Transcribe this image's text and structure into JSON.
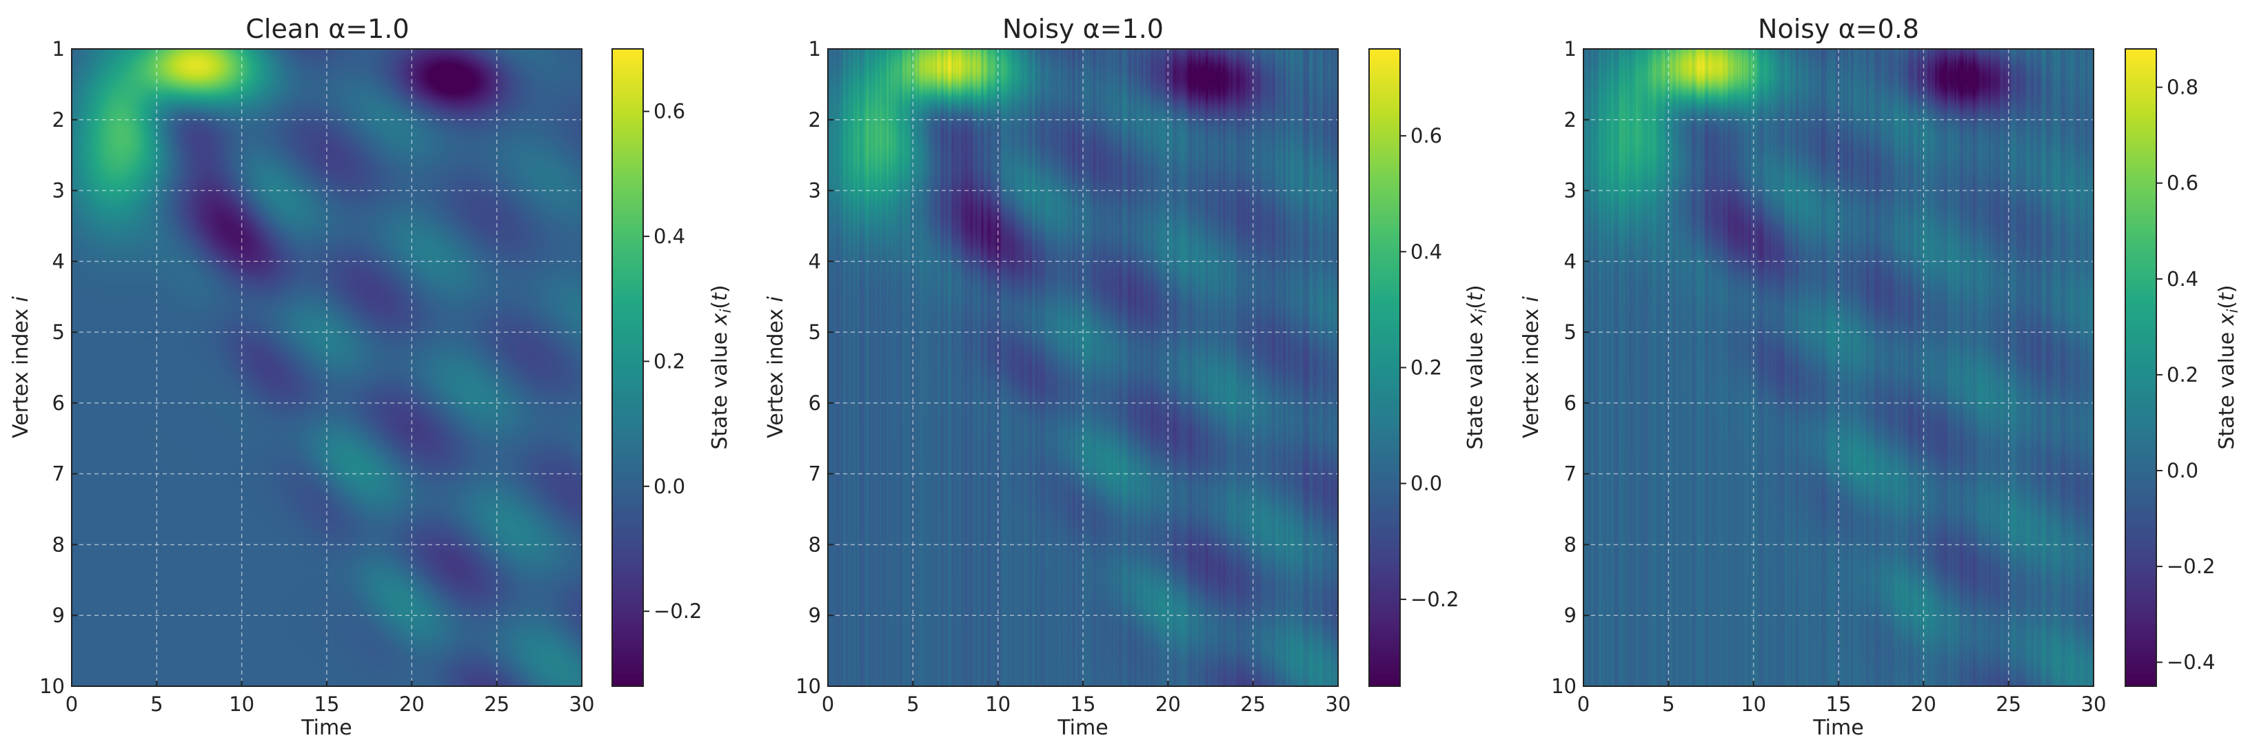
{
  "chart_data": [
    {
      "type": "heatmap",
      "title": "Clean α=1.0",
      "xlabel": "Time",
      "ylabel": "Vertex index i",
      "colorbar_label": "State value x_i(t)",
      "xlim": [
        0,
        30
      ],
      "ylim": [
        1,
        10
      ],
      "y_inverted": true,
      "x_ticks": [
        "0",
        "5",
        "10",
        "15",
        "20",
        "25",
        "30"
      ],
      "y_ticks": [
        "1",
        "2",
        "3",
        "4",
        "5",
        "6",
        "7",
        "8",
        "9",
        "10"
      ],
      "colorbar_range": [
        -0.32,
        0.7
      ],
      "colorbar_ticks": [
        "−0.2",
        "0.0",
        "0.2",
        "0.4",
        "0.6"
      ],
      "colorbar_tick_values": [
        -0.2,
        0.0,
        0.2,
        0.4,
        0.6
      ],
      "colormap": "viridis",
      "grid": true,
      "noise": 0,
      "features": {
        "peak_time": 6.5,
        "peak_value": 0.7,
        "trough_time": 22.5,
        "trough_value": -0.3
      }
    },
    {
      "type": "heatmap",
      "title": "Noisy α=1.0",
      "xlabel": "Time",
      "ylabel": "Vertex index i",
      "colorbar_label": "State value x_i(t)",
      "xlim": [
        0,
        30
      ],
      "ylim": [
        1,
        10
      ],
      "y_inverted": true,
      "x_ticks": [
        "0",
        "5",
        "10",
        "15",
        "20",
        "25",
        "30"
      ],
      "y_ticks": [
        "1",
        "2",
        "3",
        "4",
        "5",
        "6",
        "7",
        "8",
        "9",
        "10"
      ],
      "colorbar_range": [
        -0.35,
        0.75
      ],
      "colorbar_ticks": [
        "−0.2",
        "0.0",
        "0.2",
        "0.4",
        "0.6"
      ],
      "colorbar_tick_values": [
        -0.2,
        0.0,
        0.2,
        0.4,
        0.6
      ],
      "colormap": "viridis",
      "grid": true,
      "noise": 0.06,
      "features": {
        "peak_time": 6.5,
        "peak_value": 0.72,
        "trough_time": 22.5,
        "trough_value": -0.32
      }
    },
    {
      "type": "heatmap",
      "title": "Noisy α=0.8",
      "xlabel": "Time",
      "ylabel": "Vertex index i",
      "colorbar_label": "State value x_i(t)",
      "xlim": [
        0,
        30
      ],
      "ylim": [
        1,
        10
      ],
      "y_inverted": true,
      "x_ticks": [
        "0",
        "5",
        "10",
        "15",
        "20",
        "25",
        "30"
      ],
      "y_ticks": [
        "1",
        "2",
        "3",
        "4",
        "5",
        "6",
        "7",
        "8",
        "9",
        "10"
      ],
      "colorbar_range": [
        -0.45,
        0.88
      ],
      "colorbar_ticks": [
        "−0.4",
        "−0.2",
        "0.0",
        "0.2",
        "0.4",
        "0.6",
        "0.8"
      ],
      "colorbar_tick_values": [
        -0.4,
        -0.2,
        0.0,
        0.2,
        0.4,
        0.6,
        0.8
      ],
      "colormap": "viridis",
      "grid": true,
      "noise": 0.07,
      "features": {
        "peak_time": 6.5,
        "peak_value": 0.85,
        "trough_time": 22.5,
        "trough_value": -0.42
      }
    }
  ]
}
